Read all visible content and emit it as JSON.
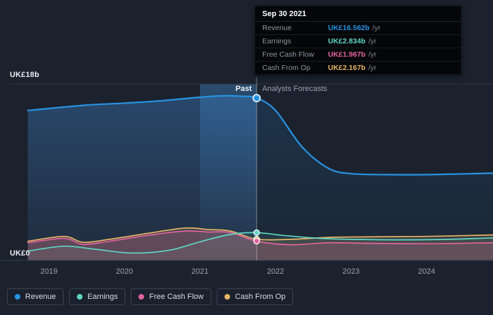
{
  "tooltip": {
    "date": "Sep 30 2021",
    "suffix": "/yr",
    "rows": [
      {
        "label": "Revenue",
        "value": "UK£16.562b",
        "color": "#2793e2"
      },
      {
        "label": "Earnings",
        "value": "UK£2.834b",
        "color": "#5fd6c7"
      },
      {
        "label": "Free Cash Flow",
        "value": "UK£1.967b",
        "color": "#e2639f"
      },
      {
        "label": "Cash From Op",
        "value": "UK£2.167b",
        "color": "#e5b468"
      }
    ]
  },
  "legend": {
    "items": [
      {
        "label": "Revenue",
        "color": "#2793e2"
      },
      {
        "label": "Earnings",
        "color": "#5fd6c7"
      },
      {
        "label": "Free Cash Flow",
        "color": "#e2639f"
      },
      {
        "label": "Cash From Op",
        "color": "#e5b468"
      }
    ]
  },
  "chart_data": {
    "type": "line",
    "currency_unit": "UK£ billions per year",
    "y_axis": {
      "min": 0,
      "max": 18,
      "top_label": "UK£18b",
      "bottom_label": "UK£0"
    },
    "x_ticks": [
      "2019",
      "2020",
      "2021",
      "2022",
      "2023",
      "2024"
    ],
    "divider": {
      "x": 2021.75,
      "date": "Sep 30 2021",
      "past_label": "Past",
      "forecast_label": "Analysts Forecasts"
    },
    "highlight_band": {
      "from": 2021.0,
      "to": 2021.75
    },
    "series": [
      {
        "name": "Revenue",
        "color": "#2793e2",
        "divider_value": 16.562,
        "x": [
          2018.72,
          2019.0,
          2019.5,
          2020.0,
          2020.5,
          2021.0,
          2021.3,
          2021.55,
          2021.75,
          2022.0,
          2022.35,
          2022.7,
          2023.0,
          2023.5,
          2024.0,
          2024.88
        ],
        "values": [
          15.3,
          15.5,
          15.85,
          16.05,
          16.3,
          16.65,
          16.8,
          16.75,
          16.562,
          15.3,
          11.6,
          9.4,
          8.85,
          8.75,
          8.75,
          8.9
        ]
      },
      {
        "name": "Earnings",
        "color": "#5fd6c7",
        "divider_value": 2.834,
        "x": [
          2018.72,
          2019.2,
          2019.6,
          2020.1,
          2020.6,
          2021.0,
          2021.4,
          2021.75,
          2022.1,
          2022.6,
          2023.0,
          2023.6,
          2024.3,
          2024.88
        ],
        "values": [
          0.95,
          1.45,
          1.15,
          0.75,
          1.05,
          1.9,
          2.65,
          2.834,
          2.55,
          2.25,
          2.15,
          2.1,
          2.15,
          2.3
        ]
      },
      {
        "name": "Free Cash Flow",
        "color": "#e2639f",
        "divider_value": 1.967,
        "x": [
          2018.72,
          2019.2,
          2019.45,
          2019.8,
          2020.3,
          2020.8,
          2021.1,
          2021.4,
          2021.75,
          2022.2,
          2022.7,
          2023.2,
          2024.0,
          2024.88
        ],
        "values": [
          1.8,
          2.25,
          1.65,
          1.95,
          2.55,
          3.0,
          2.9,
          2.85,
          1.967,
          1.6,
          1.8,
          1.75,
          1.7,
          1.8
        ]
      },
      {
        "name": "Cash From Op",
        "color": "#e5b468",
        "divider_value": 2.167,
        "x": [
          2018.72,
          2019.2,
          2019.45,
          2019.8,
          2020.3,
          2020.8,
          2021.1,
          2021.4,
          2021.75,
          2022.2,
          2022.7,
          2023.2,
          2024.0,
          2024.88
        ],
        "values": [
          1.95,
          2.45,
          1.85,
          2.15,
          2.75,
          3.3,
          3.15,
          3.0,
          2.167,
          2.15,
          2.35,
          2.4,
          2.45,
          2.6
        ]
      }
    ]
  }
}
